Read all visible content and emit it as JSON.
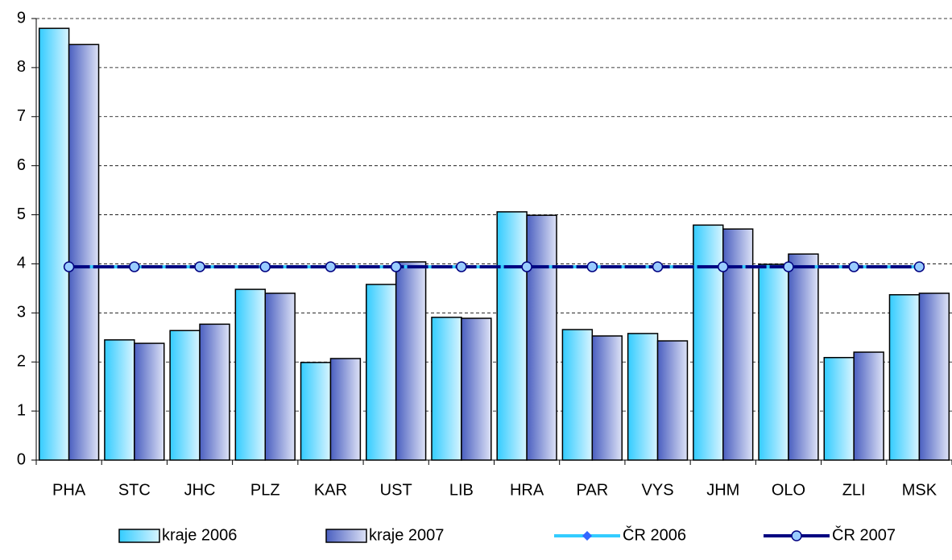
{
  "chart_data": {
    "type": "bar",
    "categories": [
      "PHA",
      "STC",
      "JHC",
      "PLZ",
      "KAR",
      "UST",
      "LIB",
      "HRA",
      "PAR",
      "VYS",
      "JHM",
      "OLO",
      "ZLI",
      "MSK"
    ],
    "series": [
      {
        "name": "kraje 2006",
        "type": "bar",
        "color": "#33ccff",
        "values": [
          8.8,
          2.45,
          2.64,
          3.48,
          1.99,
          3.58,
          2.91,
          5.06,
          2.66,
          2.58,
          4.79,
          3.99,
          2.09,
          3.37
        ]
      },
      {
        "name": "kraje 2007",
        "type": "bar",
        "color": "#5a6fc8",
        "values": [
          8.47,
          2.38,
          2.77,
          3.4,
          2.07,
          4.04,
          2.89,
          4.99,
          2.53,
          2.43,
          4.71,
          4.2,
          2.2,
          3.4
        ]
      },
      {
        "name": "ČR 2006",
        "type": "line",
        "color": "#33ccff",
        "values": [
          3.94,
          3.94,
          3.94,
          3.94,
          3.94,
          3.94,
          3.94,
          3.94,
          3.94,
          3.94,
          3.94,
          3.94,
          3.94,
          3.94
        ]
      },
      {
        "name": "ČR 2007",
        "type": "line",
        "color": "#000080",
        "values": [
          3.94,
          3.94,
          3.94,
          3.94,
          3.94,
          3.94,
          3.94,
          3.94,
          3.94,
          3.94,
          3.94,
          3.94,
          3.94,
          3.94
        ]
      }
    ],
    "ylim": [
      0,
      9
    ],
    "yticks": [
      0,
      1,
      2,
      3,
      4,
      5,
      6,
      7,
      8,
      9
    ],
    "grid": true,
    "legend": "bottom"
  }
}
